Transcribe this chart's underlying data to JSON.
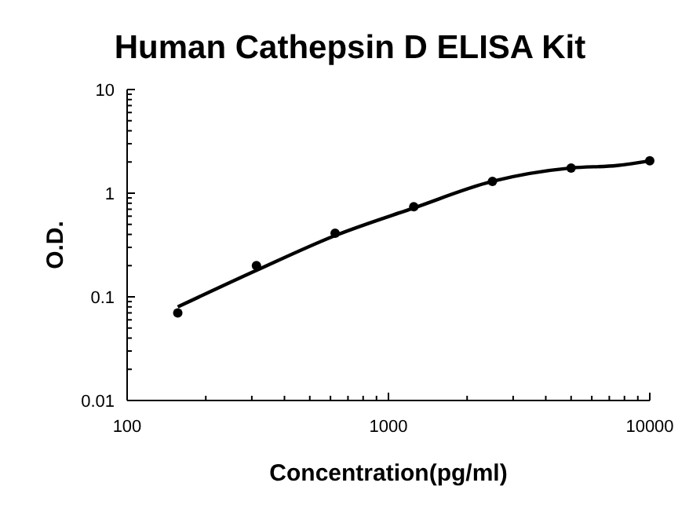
{
  "chart_data": {
    "type": "scatter",
    "title": "Human Cathepsin D ELISA Kit",
    "xlabel": "Concentration(pg/ml)",
    "ylabel": "O.D.",
    "log": "xy",
    "grid": false,
    "marker": "circle",
    "xlim": [
      100,
      10000
    ],
    "ylim": [
      0.01,
      10
    ],
    "xticks": [
      100,
      {
        "value": 200,
        "label": null
      },
      {
        "value": 300,
        "label": null
      },
      {
        "value": 400,
        "label": null
      },
      {
        "value": 500,
        "label": null
      },
      {
        "value": 600,
        "label": null
      },
      {
        "value": 700,
        "label": null
      },
      {
        "value": 800,
        "label": null
      },
      {
        "value": 900,
        "label": null
      },
      1000,
      {
        "value": 2000,
        "label": null
      },
      {
        "value": 3000,
        "label": null
      },
      {
        "value": 4000,
        "label": null
      },
      {
        "value": 5000,
        "label": null
      },
      {
        "value": 6000,
        "label": null
      },
      {
        "value": 7000,
        "label": null
      },
      {
        "value": 8000,
        "label": null
      },
      {
        "value": 9000,
        "label": null
      },
      10000
    ],
    "yticks": [
      0.01,
      {
        "value": 0.02,
        "label": null
      },
      {
        "value": 0.03,
        "label": null
      },
      {
        "value": 0.04,
        "label": null
      },
      {
        "value": 0.05,
        "label": null
      },
      {
        "value": 0.06,
        "label": null
      },
      {
        "value": 0.07,
        "label": null
      },
      {
        "value": 0.08,
        "label": null
      },
      {
        "value": 0.09,
        "label": null
      },
      0.1,
      {
        "value": 0.2,
        "label": null
      },
      {
        "value": 0.3,
        "label": null
      },
      {
        "value": 0.4,
        "label": null
      },
      {
        "value": 0.5,
        "label": null
      },
      {
        "value": 0.6,
        "label": null
      },
      {
        "value": 0.7,
        "label": null
      },
      {
        "value": 0.8,
        "label": null
      },
      {
        "value": 0.9,
        "label": null
      },
      1,
      {
        "value": 2,
        "label": null
      },
      {
        "value": 3,
        "label": null
      },
      {
        "value": 4,
        "label": null
      },
      {
        "value": 5,
        "label": null
      },
      {
        "value": 6,
        "label": null
      },
      {
        "value": 7,
        "label": null
      },
      {
        "value": 8,
        "label": null
      },
      {
        "value": 9,
        "label": null
      },
      10
    ],
    "series": [
      {
        "color": "#000000",
        "x": [
          156.25,
          312.5,
          625,
          1250,
          2500,
          5000,
          10000
        ],
        "values": [
          0.07,
          0.2,
          0.41,
          0.74,
          1.3,
          1.75,
          2.05
        ]
      },
      {
        "type": "line",
        "marker": "none",
        "line_style": "solid",
        "color": "#000000",
        "x": [
          156.25,
          312.5,
          625,
          1250,
          2500,
          5000,
          7500,
          10000
        ],
        "values": [
          0.08,
          0.18,
          0.39,
          0.72,
          1.3,
          1.75,
          1.85,
          2.05
        ]
      }
    ]
  }
}
